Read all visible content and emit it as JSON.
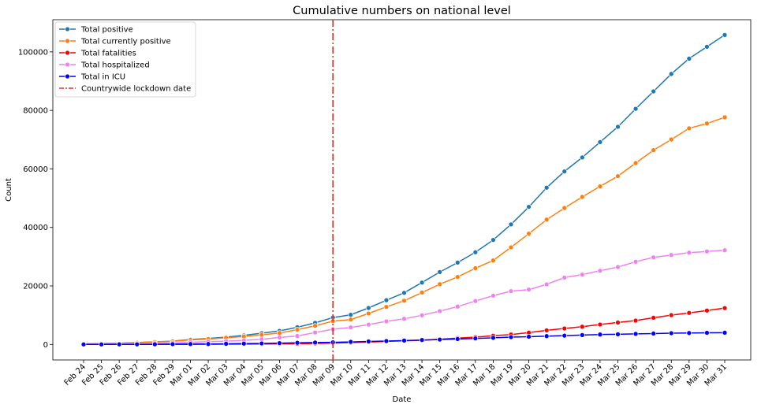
{
  "chart_data": {
    "type": "line",
    "title": "Cumulative numbers on national level",
    "xlabel": "Date",
    "ylabel": "Count",
    "ylim": [
      -5300,
      111000
    ],
    "yticks": [
      0,
      20000,
      40000,
      60000,
      80000,
      100000
    ],
    "ytick_labels": [
      "0",
      "20000",
      "40000",
      "60000",
      "80000",
      "100000"
    ],
    "grid": false,
    "legend_position": "top-left",
    "categories": [
      "Feb 24",
      "Feb 25",
      "Feb 26",
      "Feb 27",
      "Feb 28",
      "Feb 29",
      "Mar 01",
      "Mar 02",
      "Mar 03",
      "Mar 04",
      "Mar 05",
      "Mar 06",
      "Mar 07",
      "Mar 08",
      "Mar 09",
      "Mar 10",
      "Mar 11",
      "Mar 12",
      "Mar 13",
      "Mar 14",
      "Mar 15",
      "Mar 16",
      "Mar 17",
      "Mar 18",
      "Mar 19",
      "Mar 20",
      "Mar 21",
      "Mar 22",
      "Mar 23",
      "Mar 24",
      "Mar 25",
      "Mar 26",
      "Mar 27",
      "Mar 28",
      "Mar 29",
      "Mar 30",
      "Mar 31"
    ],
    "series": [
      {
        "name": "Total positive",
        "color": "#1f77b4",
        "values": [
          229,
          322,
          400,
          650,
          888,
          1128,
          1694,
          2036,
          2502,
          3089,
          3858,
          4636,
          5883,
          7375,
          9172,
          10149,
          12462,
          15113,
          17660,
          21157,
          24747,
          27980,
          31506,
          35713,
          41035,
          47021,
          53578,
          59138,
          63927,
          69176,
          74386,
          80539,
          86498,
          92472,
          97689,
          101739,
          105792
        ]
      },
      {
        "name": "Total currently positive",
        "color": "#ff7f0e",
        "values": [
          221,
          311,
          385,
          588,
          821,
          1049,
          1577,
          1835,
          2263,
          2706,
          3296,
          3916,
          5061,
          6387,
          7985,
          8514,
          10590,
          12839,
          14955,
          17750,
          20603,
          23073,
          26062,
          28710,
          33190,
          37860,
          42681,
          46638,
          50418,
          54030,
          57521,
          62013,
          66414,
          70065,
          73880,
          75528,
          77635
        ]
      },
      {
        "name": "Total fatalities",
        "color": "#ff0000",
        "values": [
          7,
          10,
          12,
          17,
          21,
          29,
          34,
          52,
          79,
          107,
          148,
          197,
          233,
          366,
          463,
          631,
          827,
          1016,
          1266,
          1441,
          1809,
          2158,
          2503,
          2978,
          3405,
          4032,
          4825,
          5476,
          6077,
          6820,
          7503,
          8165,
          9134,
          10023,
          10779,
          11591,
          12428
        ]
      },
      {
        "name": "Total hospitalized",
        "color": "#ee82ee",
        "values": [
          127,
          150,
          164,
          304,
          409,
          506,
          751,
          935,
          1128,
          1390,
          1792,
          2398,
          2890,
          4079,
          5208,
          5820,
          6776,
          7897,
          8762,
          9979,
          11396,
          12954,
          14846,
          16681,
          18222,
          18751,
          20534,
          22856,
          23880,
          25195,
          26476,
          28266,
          29769,
          30560,
          31385,
          31783,
          32199
        ]
      },
      {
        "name": "Total in ICU",
        "color": "#0000ff",
        "values": [
          26,
          23,
          35,
          36,
          64,
          105,
          140,
          166,
          229,
          295,
          351,
          462,
          567,
          650,
          733,
          877,
          1028,
          1153,
          1328,
          1518,
          1672,
          1851,
          2060,
          2257,
          2498,
          2655,
          2857,
          3009,
          3204,
          3396,
          3489,
          3612,
          3732,
          3856,
          3906,
          3981,
          4023
        ]
      }
    ],
    "reference_line": {
      "label": "Countrywide lockdown date",
      "category": "Mar 09",
      "color": "#e0312d",
      "style": "dash-dot"
    }
  }
}
